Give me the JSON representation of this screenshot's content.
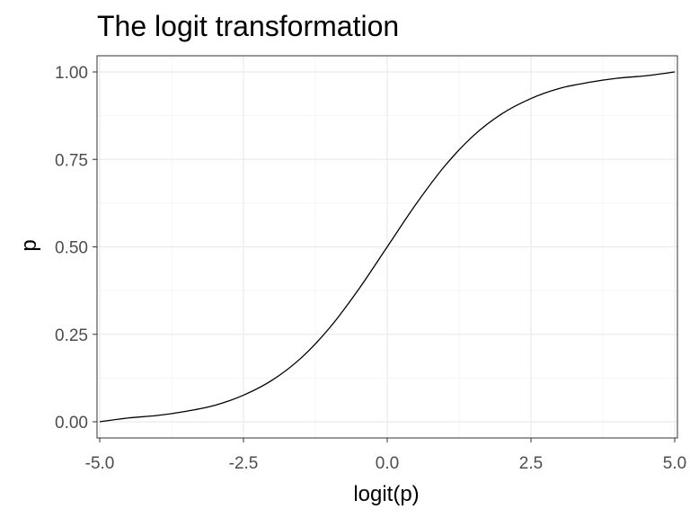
{
  "chart_data": {
    "type": "line",
    "title": "The logit transformation",
    "xlabel": "logit(p)",
    "ylabel": "p",
    "xlim": [
      -5.0,
      5.0
    ],
    "ylim": [
      0.0,
      1.0
    ],
    "x_ticks": [
      -5.0,
      -2.5,
      0.0,
      2.5,
      5.0
    ],
    "x_tick_labels": [
      "-5.0",
      "-2.5",
      "0.0",
      "2.5",
      "5.0"
    ],
    "y_ticks": [
      0.0,
      0.25,
      0.5,
      0.75,
      1.0
    ],
    "y_tick_labels": [
      "0.00",
      "0.25",
      "0.50",
      "0.75",
      "1.00"
    ],
    "grid": true,
    "legend": "none",
    "series": [
      {
        "color": "#000000",
        "points": [
          {
            "x": -5.0,
            "y": 0.0
          },
          {
            "x": -4.5,
            "y": 0.011
          },
          {
            "x": -4.0,
            "y": 0.018
          },
          {
            "x": -3.5,
            "y": 0.03
          },
          {
            "x": -3.0,
            "y": 0.047
          },
          {
            "x": -2.5,
            "y": 0.076
          },
          {
            "x": -2.0,
            "y": 0.119
          },
          {
            "x": -1.5,
            "y": 0.182
          },
          {
            "x": -1.0,
            "y": 0.269
          },
          {
            "x": -0.5,
            "y": 0.378
          },
          {
            "x": 0.0,
            "y": 0.5
          },
          {
            "x": 0.5,
            "y": 0.622
          },
          {
            "x": 1.0,
            "y": 0.731
          },
          {
            "x": 1.5,
            "y": 0.818
          },
          {
            "x": 2.0,
            "y": 0.881
          },
          {
            "x": 2.5,
            "y": 0.924
          },
          {
            "x": 3.0,
            "y": 0.953
          },
          {
            "x": 3.5,
            "y": 0.97
          },
          {
            "x": 4.0,
            "y": 0.982
          },
          {
            "x": 4.5,
            "y": 0.989
          },
          {
            "x": 5.0,
            "y": 1.0
          }
        ]
      }
    ]
  },
  "colors": {
    "panel_border": "#333333",
    "grid_major": "#ebebeb",
    "grid_minor": "#f5f5f5",
    "tick_text": "#4d4d4d",
    "line": "#000000"
  }
}
